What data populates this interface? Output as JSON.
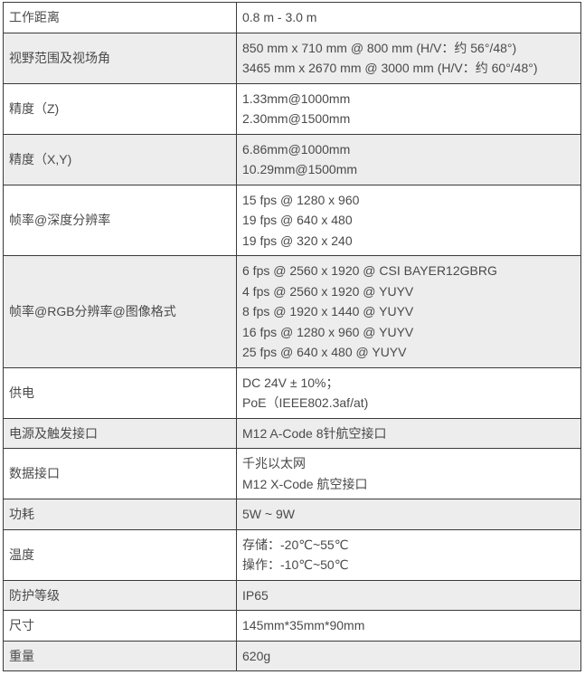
{
  "rows": [
    {
      "label": "工作距离",
      "values": [
        "0.8 m - 3.0 m"
      ]
    },
    {
      "label": "视野范围及视场角",
      "values": [
        "850 mm x 710 mm @ 800 mm (H/V：约 56°/48°)",
        "3465 mm x 2670 mm @ 3000 mm (H/V：约 60°/48°)"
      ]
    },
    {
      "label": "精度（Z)",
      "values": [
        "1.33mm@1000mm",
        "2.30mm@1500mm"
      ]
    },
    {
      "label": "精度（X,Y)",
      "values": [
        "6.86mm@1000mm",
        "10.29mm@1500mm"
      ]
    },
    {
      "label": "帧率@深度分辨率",
      "values": [
        "15 fps @ 1280 x 960",
        "19 fps @ 640 x 480",
        "19 fps @ 320 x 240"
      ]
    },
    {
      "label": "帧率@RGB分辨率@图像格式",
      "values": [
        "6 fps @ 2560 x 1920 @ CSI BAYER12GBRG",
        "4 fps @ 2560 x 1920 @ YUYV",
        "8 fps @ 1920 x 1440 @ YUYV",
        "16 fps @ 1280 x 960 @ YUYV",
        "25 fps @ 640 x 480 @ YUYV"
      ]
    },
    {
      "label": "供电",
      "values": [
        "DC 24V ± 10%；",
        "PoE（IEEE802.3af/at)"
      ]
    },
    {
      "label": "电源及触发接口",
      "values": [
        "M12 A-Code 8针航空接口"
      ]
    },
    {
      "label": "数据接口",
      "values": [
        "千兆以太网",
        "M12 X-Code 航空接口"
      ]
    },
    {
      "label": "功耗",
      "values": [
        "5W ~ 9W"
      ]
    },
    {
      "label": "温度",
      "values": [
        "存储：-20℃~55℃",
        "操作：-10℃~50℃"
      ]
    },
    {
      "label": "防护等级",
      "values": [
        "IP65"
      ]
    },
    {
      "label": "尺寸",
      "values": [
        "145mm*35mm*90mm"
      ]
    },
    {
      "label": "重量",
      "values": [
        "620g"
      ]
    }
  ]
}
